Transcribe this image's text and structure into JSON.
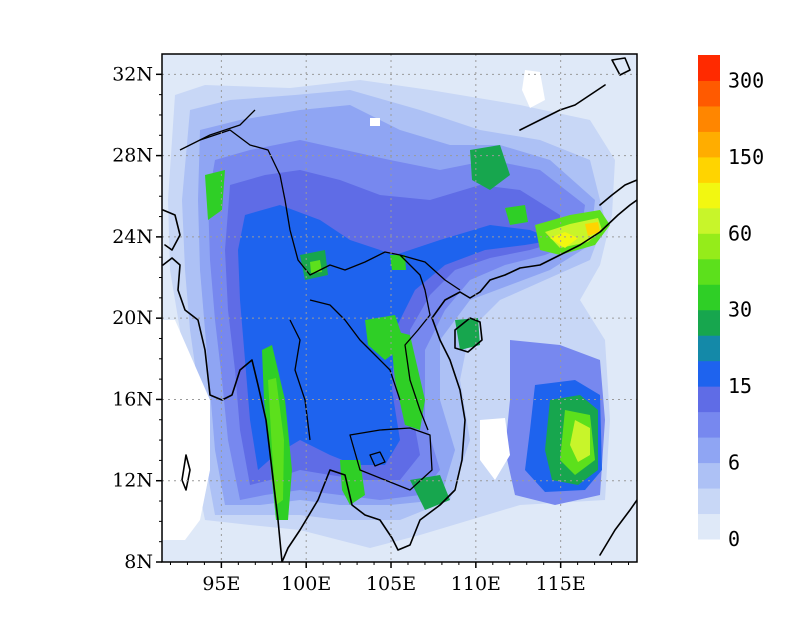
{
  "map": {
    "lat_ticks": [
      "8N",
      "12N",
      "16N",
      "20N",
      "24N",
      "28N",
      "32N"
    ],
    "lon_ticks": [
      "95E",
      "100E",
      "105E",
      "110E",
      "115E"
    ],
    "lat_range": [
      8,
      33
    ],
    "lon_range": [
      91.5,
      119.5
    ],
    "colorbar": {
      "labels": [
        "0",
        "6",
        "15",
        "30",
        "60",
        "150",
        "300"
      ],
      "colors": [
        "#dfe9f8",
        "#c8d7f6",
        "#adc1f5",
        "#8fa5f3",
        "#7788ef",
        "#5f6ce6",
        "#1e63ee",
        "#1489a8",
        "#17a64e",
        "#2fcf26",
        "#5ce01c",
        "#95ec1a",
        "#c8f52a",
        "#f2f711",
        "#ffd400",
        "#ffad00",
        "#ff8600",
        "#ff5a00",
        "#ff2a00"
      ]
    }
  }
}
